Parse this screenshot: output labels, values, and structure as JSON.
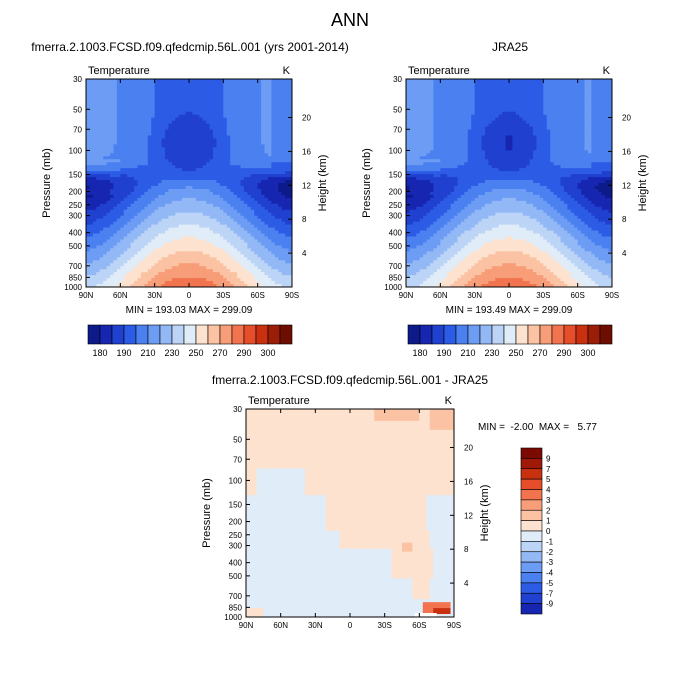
{
  "main_title": "ANN",
  "chart_data": [
    {
      "type": "heatmap",
      "title": "fmerra.2.1003.FCSD.f09.qfedcmip.56L.001 (yrs 2001-2014)",
      "subtitle_left": "Temperature",
      "subtitle_right": "K",
      "ylabel": "Pressure (mb)",
      "ylabel_right": "Height (km)",
      "xticks": [
        "90N",
        "60N",
        "30N",
        "0",
        "30S",
        "60S",
        "90S"
      ],
      "yticks": [
        "30",
        "50",
        "70",
        "100",
        "150",
        "200",
        "250",
        "300",
        "400",
        "500",
        "700",
        "850",
        "1000"
      ],
      "yticks_right": [
        "20",
        "16",
        "12",
        "8",
        "4"
      ],
      "y_scale": "log",
      "ylim": [
        1000,
        30
      ],
      "x_range": [
        90,
        -90
      ],
      "minmax_text": "MIN = 193.03  MAX = 299.09",
      "min": 193.03,
      "max": 299.09
    },
    {
      "type": "heatmap",
      "title": "JRA25",
      "subtitle_left": "Temperature",
      "subtitle_right": "K",
      "ylabel": "Pressure (mb)",
      "ylabel_right": "Height (km)",
      "xticks": [
        "90N",
        "60N",
        "30N",
        "0",
        "30S",
        "60S",
        "90S"
      ],
      "yticks": [
        "30",
        "50",
        "70",
        "100",
        "150",
        "200",
        "250",
        "300",
        "400",
        "500",
        "700",
        "850",
        "1000"
      ],
      "yticks_right": [
        "20",
        "16",
        "12",
        "8",
        "4"
      ],
      "y_scale": "log",
      "ylim": [
        1000,
        30
      ],
      "x_range": [
        90,
        -90
      ],
      "minmax_text": "MIN = 193.49  MAX = 299.09",
      "min": 193.49,
      "max": 299.09
    },
    {
      "type": "heatmap",
      "title": "fmerra.2.1003.FCSD.f09.qfedcmip.56L.001 - JRA25",
      "subtitle_left": "Temperature",
      "subtitle_right": "K",
      "ylabel": "Pressure (mb)",
      "ylabel_right": "Height (km)",
      "xticks": [
        "90N",
        "60N",
        "30N",
        "0",
        "30S",
        "60S",
        "90S"
      ],
      "yticks": [
        "30",
        "50",
        "70",
        "100",
        "150",
        "200",
        "250",
        "300",
        "400",
        "500",
        "700",
        "850",
        "1000"
      ],
      "yticks_right": [
        "20",
        "16",
        "12",
        "8",
        "4"
      ],
      "y_scale": "log",
      "ylim": [
        1000,
        30
      ],
      "x_range": [
        90,
        -90
      ],
      "minmax_text": "MIN =  -2.00  MAX =   5.77",
      "min": -2.0,
      "max": 5.77
    }
  ],
  "colorbar_abs": {
    "labels": [
      "180",
      "190",
      "210",
      "230",
      "250",
      "270",
      "290",
      "300"
    ],
    "colors": [
      "#0d1a8a",
      "#1626b0",
      "#2040d0",
      "#2c5ce6",
      "#4a80f0",
      "#6d9cf4",
      "#93b8f6",
      "#bcd4f6",
      "#e0ecf8",
      "#fde2cf",
      "#fbc2a3",
      "#f79d78",
      "#f2744e",
      "#e64d2a",
      "#c8300f",
      "#9c1d08",
      "#6e0e02"
    ]
  },
  "colorbar_diff": {
    "labels": [
      "9",
      "7",
      "5",
      "4",
      "3",
      "2",
      "1",
      "0",
      "-1",
      "-2",
      "-3",
      "-4",
      "-5",
      "-7",
      "-9"
    ],
    "colors": [
      "#7a0a02",
      "#a01808",
      "#c8300f",
      "#e64d2a",
      "#f2744e",
      "#f79d78",
      "#fbc2a3",
      "#fde2cf",
      "#e0ecf8",
      "#bcd4f6",
      "#93b8f6",
      "#6d9cf4",
      "#4a80f0",
      "#2c5ce6",
      "#2040d0",
      "#1626b0"
    ]
  }
}
